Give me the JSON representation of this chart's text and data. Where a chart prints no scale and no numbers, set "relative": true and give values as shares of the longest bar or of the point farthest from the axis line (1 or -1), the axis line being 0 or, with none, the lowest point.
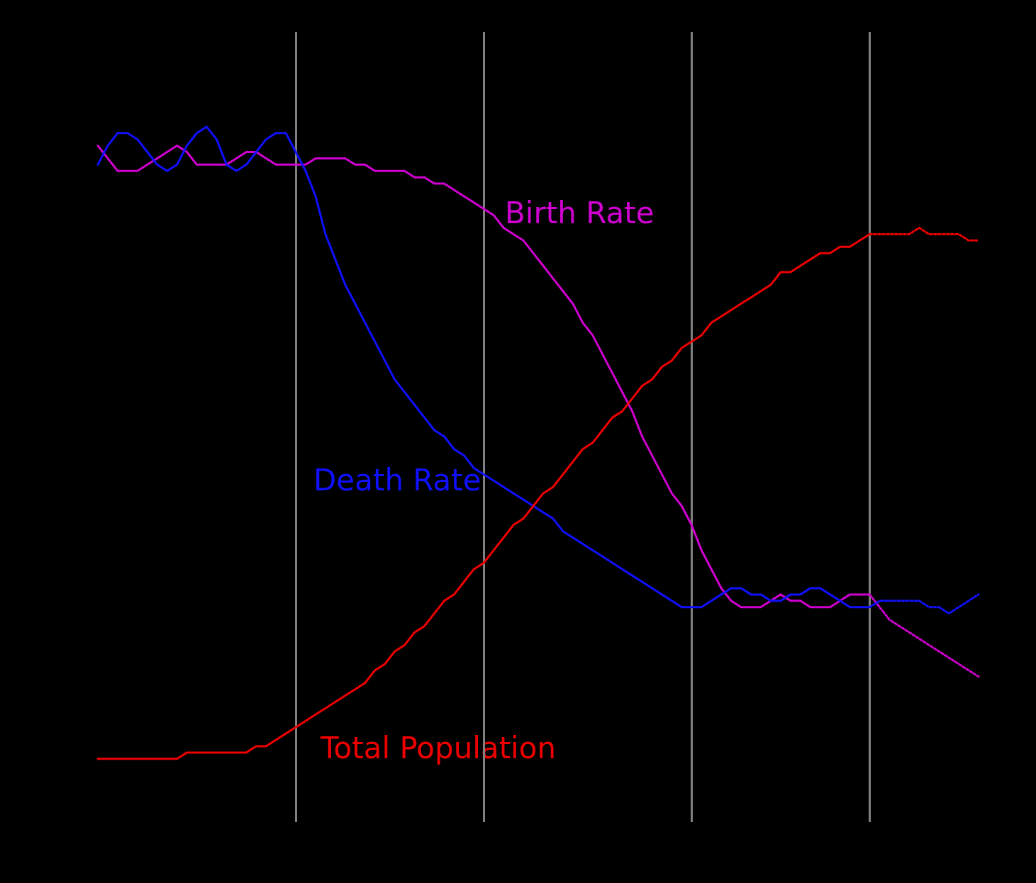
{
  "chart_data": {
    "type": "line",
    "relative": true,
    "grid": "x",
    "legend": false,
    "marker": "none",
    "categories": [
      null,
      null,
      null,
      null,
      null,
      null,
      null,
      null,
      null,
      null,
      null,
      null,
      null,
      null,
      null,
      null,
      null,
      null,
      null,
      null,
      null,
      null,
      null,
      null,
      null,
      null,
      null,
      null,
      null,
      null,
      null,
      null,
      null,
      null,
      null,
      null,
      null,
      null,
      null,
      null,
      null,
      null,
      null,
      null,
      null,
      null,
      null,
      null,
      null,
      null,
      null,
      null,
      null,
      null,
      null,
      null,
      null,
      null,
      null,
      null,
      null,
      null,
      null,
      null,
      null,
      null,
      null,
      null,
      null,
      null,
      null,
      null,
      null,
      null,
      null,
      null,
      null,
      null,
      null,
      null,
      null,
      null,
      null,
      null,
      null,
      null,
      null,
      null,
      null,
      null
    ],
    "series": [
      {
        "name": "Birth Rate",
        "color": "#d000d0",
        "line_style": "solid",
        "values": [
          0.97,
          0.95,
          0.93,
          0.93,
          0.93,
          0.94,
          0.95,
          0.96,
          0.97,
          0.96,
          0.94,
          0.94,
          0.94,
          0.94,
          0.95,
          0.96,
          0.96,
          0.95,
          0.94,
          0.94,
          0.94,
          0.94,
          0.95,
          0.95,
          0.95,
          0.95,
          0.94,
          0.94,
          0.93,
          0.93,
          0.93,
          0.93,
          0.92,
          0.92,
          0.91,
          0.91,
          0.9,
          0.89,
          0.88,
          0.87,
          0.86,
          0.84,
          0.83,
          0.82,
          0.8,
          0.78,
          0.76,
          0.74,
          0.72,
          0.69,
          0.67,
          0.64,
          0.61,
          0.58,
          0.55,
          0.51,
          0.48,
          0.45,
          0.42,
          0.4,
          0.37,
          0.33,
          0.3,
          0.27,
          0.25,
          0.24,
          0.24,
          0.24,
          0.25,
          0.26,
          0.25,
          0.25,
          0.24,
          0.24,
          0.24,
          0.25,
          0.26,
          0.26,
          0.26,
          null,
          null,
          null,
          null,
          null,
          null,
          null,
          null,
          null,
          null,
          null
        ]
      },
      {
        "color": "#d000d0",
        "line_style": "dotted",
        "values": [
          null,
          null,
          null,
          null,
          null,
          null,
          null,
          null,
          null,
          null,
          null,
          null,
          null,
          null,
          null,
          null,
          null,
          null,
          null,
          null,
          null,
          null,
          null,
          null,
          null,
          null,
          null,
          null,
          null,
          null,
          null,
          null,
          null,
          null,
          null,
          null,
          null,
          null,
          null,
          null,
          null,
          null,
          null,
          null,
          null,
          null,
          null,
          null,
          null,
          null,
          null,
          null,
          null,
          null,
          null,
          null,
          null,
          null,
          null,
          null,
          null,
          null,
          null,
          null,
          null,
          null,
          null,
          null,
          null,
          null,
          null,
          null,
          null,
          null,
          null,
          null,
          null,
          null,
          0.26,
          0.24,
          0.22,
          0.21,
          0.2,
          0.19,
          0.18,
          0.17,
          0.16,
          0.15,
          0.14,
          0.13
        ]
      },
      {
        "name": "Death Rate",
        "color": "#1010ff",
        "line_style": "solid",
        "values": [
          0.94,
          0.97,
          0.99,
          0.99,
          0.98,
          0.96,
          0.94,
          0.93,
          0.94,
          0.97,
          0.99,
          1,
          0.98,
          0.94,
          0.93,
          0.94,
          0.96,
          0.98,
          0.99,
          0.99,
          0.96,
          0.93,
          0.89,
          0.83,
          0.79,
          0.75,
          0.72,
          0.69,
          0.66,
          0.63,
          0.6,
          0.58,
          0.56,
          0.54,
          0.52,
          0.51,
          0.49,
          0.48,
          0.46,
          0.45,
          0.44,
          0.43,
          0.42,
          0.41,
          0.4,
          0.39,
          0.38,
          0.36,
          0.35,
          0.34,
          0.33,
          0.32,
          0.31,
          0.3,
          0.29,
          0.28,
          0.27,
          0.26,
          0.25,
          0.24,
          0.24,
          0.24,
          0.25,
          0.26,
          0.27,
          0.27,
          0.26,
          0.26,
          0.25,
          0.25,
          0.26,
          0.26,
          0.27,
          0.27,
          0.26,
          0.25,
          0.24,
          0.24,
          0.24,
          null,
          null,
          null,
          null,
          null,
          null,
          null,
          null,
          null,
          null,
          null
        ]
      },
      {
        "color": "#1010ff",
        "line_style": "dotted",
        "values": [
          null,
          null,
          null,
          null,
          null,
          null,
          null,
          null,
          null,
          null,
          null,
          null,
          null,
          null,
          null,
          null,
          null,
          null,
          null,
          null,
          null,
          null,
          null,
          null,
          null,
          null,
          null,
          null,
          null,
          null,
          null,
          null,
          null,
          null,
          null,
          null,
          null,
          null,
          null,
          null,
          null,
          null,
          null,
          null,
          null,
          null,
          null,
          null,
          null,
          null,
          null,
          null,
          null,
          null,
          null,
          null,
          null,
          null,
          null,
          null,
          null,
          null,
          null,
          null,
          null,
          null,
          null,
          null,
          null,
          null,
          null,
          null,
          null,
          null,
          null,
          null,
          null,
          null,
          0.24,
          0.25,
          0.25,
          0.25,
          0.25,
          0.25,
          0.24,
          0.24,
          0.23,
          0.24,
          0.25,
          0.26
        ]
      },
      {
        "name": "Total Population",
        "color": "#ee0000",
        "line_style": "solid",
        "values": [
          0,
          0,
          0,
          0,
          0,
          0,
          0,
          0,
          0,
          0.01,
          0.01,
          0.01,
          0.01,
          0.01,
          0.01,
          0.01,
          0.02,
          0.02,
          0.03,
          0.04,
          0.05,
          0.06,
          0.07,
          0.08,
          0.09,
          0.1,
          0.11,
          0.12,
          0.14,
          0.15,
          0.17,
          0.18,
          0.2,
          0.21,
          0.23,
          0.25,
          0.26,
          0.28,
          0.3,
          0.31,
          0.33,
          0.35,
          0.37,
          0.38,
          0.4,
          0.42,
          0.43,
          0.45,
          0.47,
          0.49,
          0.5,
          0.52,
          0.54,
          0.55,
          0.57,
          0.59,
          0.6,
          0.62,
          0.63,
          0.65,
          0.66,
          0.67,
          0.69,
          0.7,
          0.71,
          0.72,
          0.73,
          0.74,
          0.75,
          0.77,
          0.77,
          0.78,
          0.79,
          0.8,
          0.8,
          0.81,
          0.81,
          0.82,
          0.83,
          null,
          null,
          null,
          null,
          null,
          null,
          null,
          null,
          null,
          null,
          null
        ]
      },
      {
        "color": "#ee0000",
        "line_style": "dotted",
        "values": [
          null,
          null,
          null,
          null,
          null,
          null,
          null,
          null,
          null,
          null,
          null,
          null,
          null,
          null,
          null,
          null,
          null,
          null,
          null,
          null,
          null,
          null,
          null,
          null,
          null,
          null,
          null,
          null,
          null,
          null,
          null,
          null,
          null,
          null,
          null,
          null,
          null,
          null,
          null,
          null,
          null,
          null,
          null,
          null,
          null,
          null,
          null,
          null,
          null,
          null,
          null,
          null,
          null,
          null,
          null,
          null,
          null,
          null,
          null,
          null,
          null,
          null,
          null,
          null,
          null,
          null,
          null,
          null,
          null,
          null,
          null,
          null,
          null,
          null,
          null,
          null,
          null,
          null,
          0.83,
          0.83,
          0.83,
          0.83,
          0.83,
          0.84,
          0.83,
          0.83,
          0.83,
          0.83,
          0.82,
          0.82
        ]
      }
    ]
  }
}
